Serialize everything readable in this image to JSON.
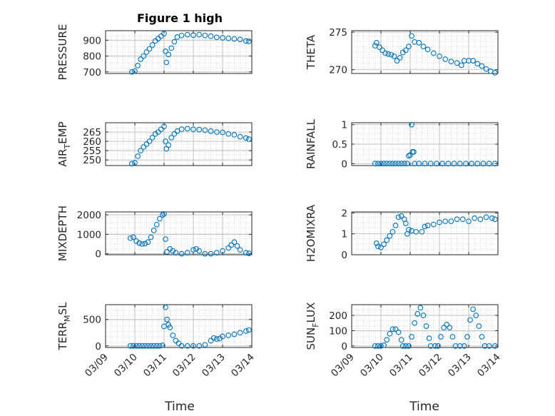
{
  "figure": {
    "title": "Figure 1 high",
    "marker_color": "#0072BD",
    "x_tick_labels": [
      "03/09",
      "03/10",
      "03/11",
      "03/12",
      "03/13",
      "03/14"
    ],
    "x_axis_label": "Time"
  },
  "chart_data": [
    {
      "type": "scatter",
      "panel": "PRESSURE",
      "ylabel": "PRESSURE",
      "ylabel_sub": "",
      "xlim": [
        0,
        5
      ],
      "ylim": [
        690,
        960
      ],
      "yticks": [
        700,
        800,
        900
      ],
      "grid": true,
      "marker": "open-circle",
      "points": [
        [
          0.9,
          700
        ],
        [
          1.0,
          705
        ],
        [
          1.1,
          740
        ],
        [
          1.2,
          780
        ],
        [
          1.3,
          800
        ],
        [
          1.4,
          825
        ],
        [
          1.5,
          845
        ],
        [
          1.6,
          870
        ],
        [
          1.7,
          895
        ],
        [
          1.8,
          910
        ],
        [
          1.9,
          925
        ],
        [
          2.0,
          942
        ],
        [
          2.05,
          830
        ],
        [
          2.08,
          760
        ],
        [
          2.15,
          810
        ],
        [
          2.25,
          850
        ],
        [
          2.35,
          890
        ],
        [
          2.45,
          920
        ],
        [
          2.6,
          930
        ],
        [
          2.8,
          935
        ],
        [
          3.0,
          932
        ],
        [
          3.2,
          935
        ],
        [
          3.4,
          930
        ],
        [
          3.6,
          925
        ],
        [
          3.8,
          918
        ],
        [
          4.0,
          915
        ],
        [
          4.2,
          912
        ],
        [
          4.4,
          908
        ],
        [
          4.6,
          905
        ],
        [
          4.8,
          895
        ],
        [
          4.9,
          893
        ]
      ]
    },
    {
      "type": "scatter",
      "panel": "THETA",
      "ylabel": "THETA",
      "ylabel_sub": "",
      "xlim": [
        0,
        5
      ],
      "ylim": [
        269.5,
        275.2
      ],
      "yticks": [
        270,
        275
      ],
      "grid": true,
      "marker": "open-circle",
      "points": [
        [
          0.8,
          273.2
        ],
        [
          0.85,
          273.6
        ],
        [
          0.95,
          273.0
        ],
        [
          1.05,
          272.6
        ],
        [
          1.15,
          272.2
        ],
        [
          1.25,
          272.1
        ],
        [
          1.35,
          272.0
        ],
        [
          1.45,
          271.8
        ],
        [
          1.55,
          271.2
        ],
        [
          1.65,
          271.6
        ],
        [
          1.75,
          272.3
        ],
        [
          1.85,
          272.6
        ],
        [
          1.95,
          273.1
        ],
        [
          2.05,
          274.5
        ],
        [
          2.15,
          273.7
        ],
        [
          2.3,
          273.6
        ],
        [
          2.45,
          273.1
        ],
        [
          2.6,
          272.7
        ],
        [
          2.8,
          272.2
        ],
        [
          3.0,
          271.8
        ],
        [
          3.2,
          271.4
        ],
        [
          3.4,
          271.1
        ],
        [
          3.6,
          270.9
        ],
        [
          3.75,
          270.6
        ],
        [
          3.85,
          271.2
        ],
        [
          4.0,
          271.2
        ],
        [
          4.15,
          271.2
        ],
        [
          4.3,
          270.8
        ],
        [
          4.45,
          270.5
        ],
        [
          4.6,
          270.1
        ],
        [
          4.75,
          269.8
        ],
        [
          4.9,
          269.6
        ]
      ]
    },
    {
      "type": "scatter",
      "panel": "AIR_TEMP",
      "ylabel": "AIR",
      "ylabel_sub": "T",
      "ylabel_suffix": "EMP",
      "xlim": [
        0,
        5
      ],
      "ylim": [
        247,
        270
      ],
      "yticks": [
        250,
        255,
        260,
        265
      ],
      "grid": true,
      "marker": "open-circle",
      "points": [
        [
          0.9,
          248
        ],
        [
          1.0,
          248.5
        ],
        [
          1.1,
          252
        ],
        [
          1.2,
          255
        ],
        [
          1.3,
          257
        ],
        [
          1.4,
          258.5
        ],
        [
          1.5,
          260
        ],
        [
          1.6,
          262
        ],
        [
          1.7,
          264
        ],
        [
          1.8,
          265
        ],
        [
          1.9,
          266.5
        ],
        [
          2.0,
          268
        ],
        [
          2.05,
          260
        ],
        [
          2.08,
          256
        ],
        [
          2.15,
          258
        ],
        [
          2.25,
          262
        ],
        [
          2.35,
          264
        ],
        [
          2.45,
          265.5
        ],
        [
          2.6,
          266.5
        ],
        [
          2.8,
          266.8
        ],
        [
          3.0,
          266.5
        ],
        [
          3.2,
          266.3
        ],
        [
          3.4,
          266
        ],
        [
          3.6,
          265.5
        ],
        [
          3.8,
          265
        ],
        [
          4.0,
          264.8
        ],
        [
          4.2,
          264
        ],
        [
          4.4,
          263.5
        ],
        [
          4.6,
          262.5
        ],
        [
          4.8,
          261.8
        ],
        [
          4.9,
          261.2
        ]
      ]
    },
    {
      "type": "scatter",
      "panel": "RAINFALL",
      "ylabel": "RAINFALL",
      "ylabel_sub": "",
      "xlim": [
        0,
        5
      ],
      "ylim": [
        -0.05,
        1.05
      ],
      "yticks": [
        0,
        0.5,
        1
      ],
      "grid": true,
      "marker": "open-circle",
      "points": [
        [
          0.8,
          0
        ],
        [
          0.9,
          0
        ],
        [
          1.0,
          0
        ],
        [
          1.1,
          0
        ],
        [
          1.2,
          0
        ],
        [
          1.3,
          0
        ],
        [
          1.4,
          0
        ],
        [
          1.5,
          0
        ],
        [
          1.6,
          0
        ],
        [
          1.7,
          0
        ],
        [
          1.8,
          0
        ],
        [
          1.9,
          0
        ],
        [
          1.95,
          0.2
        ],
        [
          2.0,
          0.22
        ],
        [
          2.05,
          1.0
        ],
        [
          2.08,
          0.3
        ],
        [
          2.12,
          0.3
        ],
        [
          2.15,
          0
        ],
        [
          2.3,
          0
        ],
        [
          2.5,
          0
        ],
        [
          2.7,
          0
        ],
        [
          2.9,
          0
        ],
        [
          3.1,
          0
        ],
        [
          3.3,
          0
        ],
        [
          3.5,
          0
        ],
        [
          3.7,
          0
        ],
        [
          3.9,
          0
        ],
        [
          4.1,
          0
        ],
        [
          4.3,
          0
        ],
        [
          4.5,
          0
        ],
        [
          4.7,
          0
        ],
        [
          4.9,
          0
        ]
      ]
    },
    {
      "type": "scatter",
      "panel": "MIXDEPTH",
      "ylabel": "MIXDEPTH",
      "ylabel_sub": "",
      "xlim": [
        0,
        5
      ],
      "ylim": [
        -50,
        2150
      ],
      "yticks": [
        0,
        1000,
        2000
      ],
      "grid": true,
      "marker": "open-circle",
      "points": [
        [
          0.85,
          800
        ],
        [
          0.95,
          850
        ],
        [
          1.05,
          650
        ],
        [
          1.15,
          550
        ],
        [
          1.25,
          500
        ],
        [
          1.35,
          520
        ],
        [
          1.45,
          600
        ],
        [
          1.55,
          850
        ],
        [
          1.65,
          1200
        ],
        [
          1.75,
          1500
        ],
        [
          1.85,
          1800
        ],
        [
          1.95,
          2000
        ],
        [
          2.0,
          2050
        ],
        [
          2.05,
          750
        ],
        [
          2.1,
          100
        ],
        [
          2.2,
          250
        ],
        [
          2.3,
          150
        ],
        [
          2.4,
          50
        ],
        [
          2.6,
          0
        ],
        [
          2.8,
          50
        ],
        [
          3.0,
          200
        ],
        [
          3.1,
          250
        ],
        [
          3.2,
          150
        ],
        [
          3.4,
          0
        ],
        [
          3.6,
          0
        ],
        [
          3.8,
          50
        ],
        [
          4.0,
          150
        ],
        [
          4.2,
          300
        ],
        [
          4.3,
          450
        ],
        [
          4.4,
          600
        ],
        [
          4.5,
          400
        ],
        [
          4.6,
          200
        ],
        [
          4.8,
          50
        ],
        [
          4.9,
          20
        ]
      ]
    },
    {
      "type": "scatter",
      "panel": "H2OMIXRA",
      "ylabel": "H2OMIXRA",
      "ylabel_sub": "",
      "xlim": [
        0,
        5
      ],
      "ylim": [
        0,
        2.05
      ],
      "yticks": [
        0,
        1,
        2
      ],
      "grid": true,
      "marker": "open-circle",
      "points": [
        [
          0.85,
          0.55
        ],
        [
          0.9,
          0.4
        ],
        [
          1.0,
          0.35
        ],
        [
          1.1,
          0.5
        ],
        [
          1.2,
          0.7
        ],
        [
          1.3,
          0.9
        ],
        [
          1.4,
          1.1
        ],
        [
          1.5,
          1.4
        ],
        [
          1.6,
          1.8
        ],
        [
          1.7,
          1.85
        ],
        [
          1.8,
          1.7
        ],
        [
          1.85,
          1.5
        ],
        [
          1.9,
          1.0
        ],
        [
          1.95,
          1.2
        ],
        [
          2.05,
          1.15
        ],
        [
          2.2,
          1.1
        ],
        [
          2.4,
          1.1
        ],
        [
          2.5,
          1.35
        ],
        [
          2.6,
          1.4
        ],
        [
          2.8,
          1.45
        ],
        [
          3.0,
          1.55
        ],
        [
          3.2,
          1.6
        ],
        [
          3.4,
          1.6
        ],
        [
          3.6,
          1.7
        ],
        [
          3.8,
          1.7
        ],
        [
          4.0,
          1.6
        ],
        [
          4.2,
          1.75
        ],
        [
          4.4,
          1.7
        ],
        [
          4.6,
          1.8
        ],
        [
          4.8,
          1.75
        ],
        [
          4.9,
          1.7
        ]
      ]
    },
    {
      "type": "scatter",
      "panel": "TERR_MSL",
      "ylabel": "TERR",
      "ylabel_sub": "M",
      "ylabel_suffix": "SL",
      "xlim": [
        0,
        5
      ],
      "ylim": [
        -30,
        780
      ],
      "yticks": [
        0,
        500
      ],
      "grid": true,
      "marker": "open-circle",
      "points": [
        [
          0.85,
          0
        ],
        [
          0.95,
          0
        ],
        [
          1.05,
          0
        ],
        [
          1.15,
          0
        ],
        [
          1.25,
          0
        ],
        [
          1.35,
          0
        ],
        [
          1.45,
          0
        ],
        [
          1.55,
          0
        ],
        [
          1.65,
          0
        ],
        [
          1.75,
          0
        ],
        [
          1.85,
          0
        ],
        [
          1.95,
          10
        ],
        [
          2.0,
          370
        ],
        [
          2.05,
          730
        ],
        [
          2.1,
          500
        ],
        [
          2.15,
          400
        ],
        [
          2.2,
          350
        ],
        [
          2.3,
          200
        ],
        [
          2.4,
          100
        ],
        [
          2.5,
          50
        ],
        [
          2.6,
          0
        ],
        [
          2.8,
          0
        ],
        [
          3.0,
          0
        ],
        [
          3.2,
          0
        ],
        [
          3.4,
          20
        ],
        [
          3.6,
          100
        ],
        [
          3.7,
          150
        ],
        [
          3.8,
          130
        ],
        [
          3.9,
          140
        ],
        [
          4.0,
          180
        ],
        [
          4.2,
          200
        ],
        [
          4.4,
          220
        ],
        [
          4.6,
          250
        ],
        [
          4.8,
          280
        ],
        [
          4.9,
          300
        ]
      ]
    },
    {
      "type": "scatter",
      "panel": "SUN_FLUX",
      "ylabel": "SUN",
      "ylabel_sub": "F",
      "ylabel_suffix": "LUX",
      "xlim": [
        0,
        5
      ],
      "ylim": [
        -10,
        270
      ],
      "yticks": [
        0,
        100,
        200
      ],
      "grid": true,
      "marker": "open-circle",
      "points": [
        [
          0.8,
          0
        ],
        [
          0.9,
          0
        ],
        [
          1.0,
          0
        ],
        [
          1.1,
          5
        ],
        [
          1.2,
          40
        ],
        [
          1.3,
          80
        ],
        [
          1.4,
          110
        ],
        [
          1.5,
          110
        ],
        [
          1.6,
          90
        ],
        [
          1.7,
          40
        ],
        [
          1.75,
          0
        ],
        [
          1.85,
          0
        ],
        [
          1.95,
          0
        ],
        [
          2.05,
          60
        ],
        [
          2.15,
          150
        ],
        [
          2.25,
          210
        ],
        [
          2.35,
          250
        ],
        [
          2.45,
          200
        ],
        [
          2.55,
          130
        ],
        [
          2.65,
          50
        ],
        [
          2.7,
          0
        ],
        [
          2.85,
          0
        ],
        [
          2.95,
          0
        ],
        [
          3.05,
          60
        ],
        [
          3.15,
          120
        ],
        [
          3.25,
          140
        ],
        [
          3.35,
          120
        ],
        [
          3.45,
          60
        ],
        [
          3.55,
          0
        ],
        [
          3.7,
          0
        ],
        [
          3.85,
          0
        ],
        [
          3.95,
          60
        ],
        [
          4.05,
          170
        ],
        [
          4.15,
          240
        ],
        [
          4.25,
          200
        ],
        [
          4.35,
          130
        ],
        [
          4.45,
          60
        ],
        [
          4.55,
          0
        ],
        [
          4.7,
          0
        ],
        [
          4.9,
          0
        ]
      ]
    }
  ]
}
